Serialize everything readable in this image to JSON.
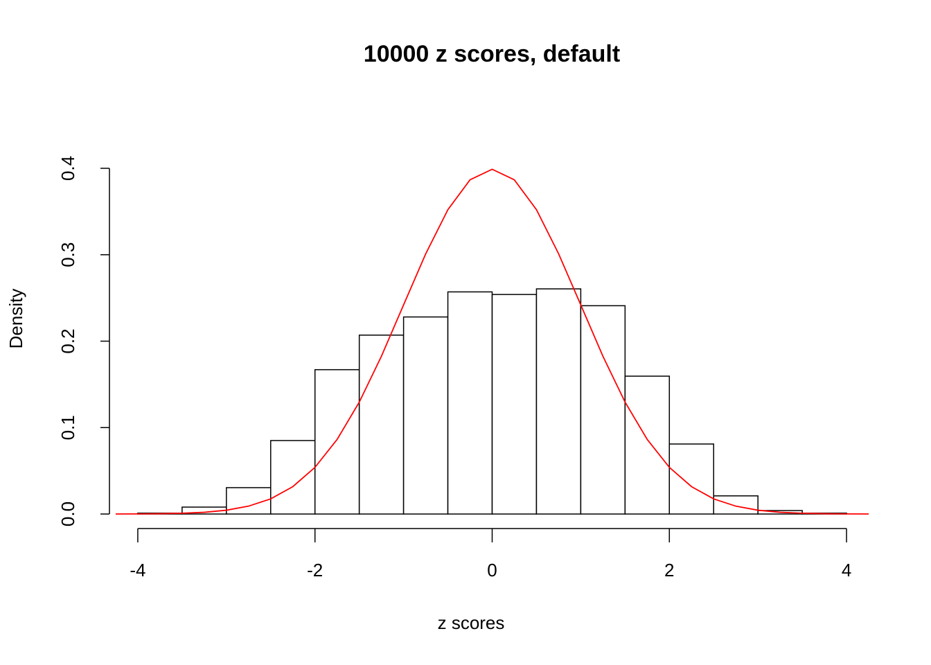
{
  "chart_data": {
    "type": "histogram",
    "title": "10000 z scores, default",
    "x_label": "z scores",
    "y_label": "Density",
    "bins": [
      -4,
      -3.5,
      -3,
      -2.5,
      -2,
      -1.5,
      -1,
      -0.5,
      0,
      0.5,
      1,
      1.5,
      2,
      2.5,
      3,
      3.5,
      4
    ],
    "values": [
      0.001,
      0.008,
      0.0305,
      0.085,
      0.167,
      0.207,
      0.228,
      0.257,
      0.254,
      0.2605,
      0.241,
      0.1595,
      0.081,
      0.021,
      0.004,
      0.001
    ],
    "fill": "#ffffff",
    "edge_color": "#000000",
    "curve": {
      "color": "#ff0000",
      "x": [
        -4.25,
        -4,
        -3.75,
        -3.5,
        -3.25,
        -3,
        -2.75,
        -2.5,
        -2.25,
        -2,
        -1.75,
        -1.5,
        -1.25,
        -1,
        -0.75,
        -0.5,
        -0.25,
        0,
        0.25,
        0.5,
        0.75,
        1,
        1.25,
        1.5,
        1.75,
        2,
        2.25,
        2.5,
        2.75,
        3,
        3.25,
        3.5,
        3.75,
        4,
        4.25
      ],
      "values": [
        0,
        0.0001,
        0.0004,
        0.0009,
        0.002,
        0.0044,
        0.0091,
        0.0175,
        0.0317,
        0.054,
        0.0863,
        0.1295,
        0.1826,
        0.242,
        0.3011,
        0.3521,
        0.3867,
        0.3989,
        0.3867,
        0.3521,
        0.3011,
        0.242,
        0.1826,
        0.1295,
        0.0863,
        0.054,
        0.0317,
        0.0175,
        0.0091,
        0.0044,
        0.002,
        0.0009,
        0.0004,
        0.0001,
        0
      ]
    },
    "xlim": [
      -4.32,
      4.32
    ],
    "ylim": [
      -0.016,
      0.416
    ],
    "xticks": [
      -4,
      -2,
      0,
      2,
      4
    ],
    "yticks": [
      {
        "value": 0,
        "label": "0.0"
      },
      0.1,
      0.2,
      0.3,
      0.4
    ]
  }
}
